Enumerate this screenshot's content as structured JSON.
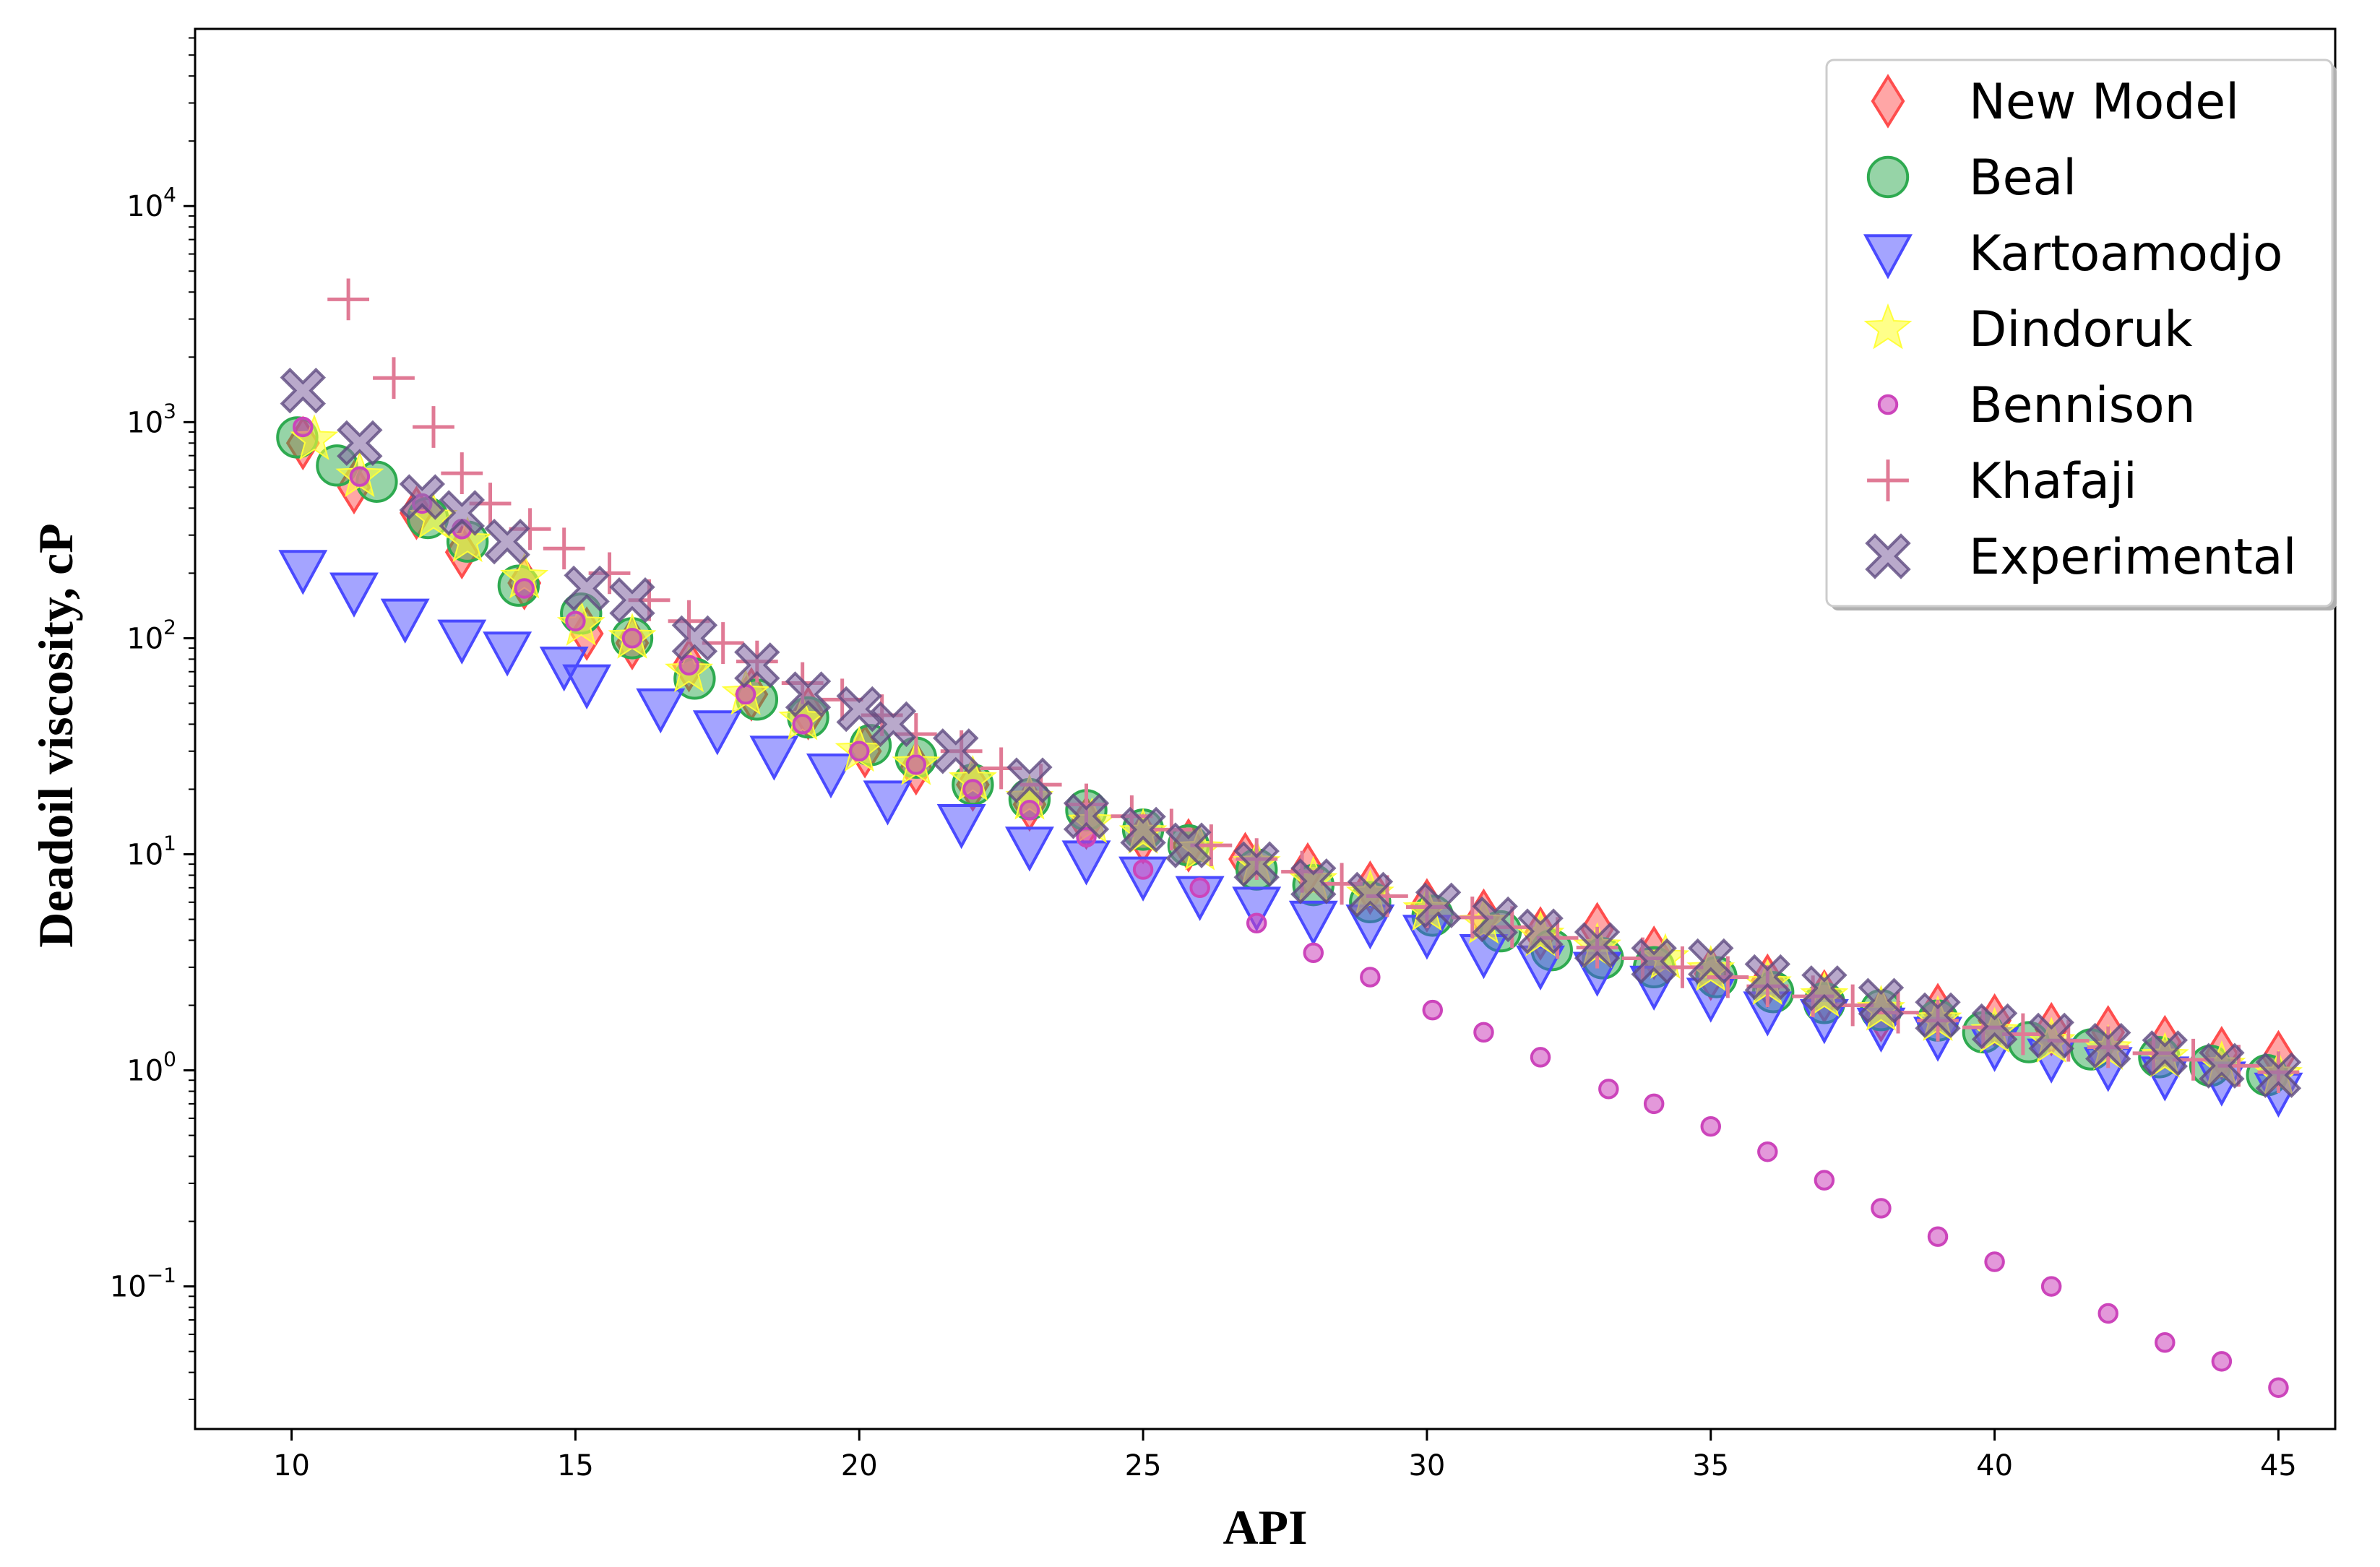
{
  "chart_data": {
    "type": "scatter",
    "title": "",
    "xlabel": "API",
    "ylabel": "Deadoil viscosity,  cP",
    "yscale": "log",
    "xlim": [
      8.3,
      46.0
    ],
    "ylim_log10": [
      -1.66,
      4.82
    ],
    "grid": false,
    "legend_position": "top-right",
    "x_ticks": [
      10,
      15,
      20,
      25,
      30,
      35,
      40,
      45
    ],
    "y_ticks": [
      {
        "base": "10",
        "exp": "4",
        "log": 4
      },
      {
        "base": "10",
        "exp": "3",
        "log": 3
      },
      {
        "base": "10",
        "exp": "2",
        "log": 2
      },
      {
        "base": "10",
        "exp": "1",
        "log": 1
      },
      {
        "base": "10",
        "exp": "0",
        "log": 0
      },
      {
        "base": "10",
        "exp": "−1",
        "log": -1
      }
    ],
    "series": [
      {
        "name": "New Model",
        "marker": "diamond",
        "color": "#ff4d4d",
        "x": [
          10.2,
          11.1,
          12.2,
          13.0,
          14.1,
          15.2,
          16.0,
          17.0,
          18.1,
          19.1,
          20.1,
          21.0,
          22.0,
          23.0,
          24.0,
          25.0,
          25.8,
          26.8,
          27.9,
          29.0,
          30.0,
          31.0,
          32.0,
          33.0,
          34.0,
          35.0,
          36.0,
          37.0,
          38.0,
          39.0,
          40.0,
          41.0,
          42.0,
          43.0,
          44.0,
          45.0
        ],
        "y": [
          800,
          500,
          380,
          250,
          180,
          105,
          95,
          75,
          55,
          45,
          30,
          25,
          21,
          17,
          14,
          12,
          11,
          9.5,
          8.5,
          7,
          5.8,
          5.2,
          4.3,
          4.5,
          3.5,
          2.8,
          2.6,
          2.2,
          1.8,
          1.9,
          1.7,
          1.55,
          1.5,
          1.35,
          1.2,
          1.15
        ]
      },
      {
        "name": "Beal",
        "marker": "circle",
        "color": "#2eaa50",
        "x": [
          10.1,
          10.8,
          11.5,
          12.4,
          13.1,
          14.0,
          15.1,
          16.0,
          17.1,
          18.2,
          19.1,
          20.2,
          21.0,
          22.0,
          23.0,
          24.0,
          25.0,
          25.8,
          27.0,
          28.0,
          29.0,
          30.1,
          31.3,
          32.2,
          33.1,
          34.0,
          35.1,
          36.1,
          37.0,
          38.0,
          39.0,
          39.8,
          40.6,
          41.7,
          42.9,
          43.8,
          44.8
        ],
        "y": [
          850,
          630,
          530,
          360,
          280,
          175,
          130,
          100,
          65,
          52,
          43,
          32,
          28,
          21,
          18,
          16,
          13,
          11,
          8.5,
          7.2,
          6,
          5.2,
          4.4,
          3.6,
          3.3,
          3,
          2.7,
          2.3,
          2.05,
          1.9,
          1.7,
          1.5,
          1.35,
          1.25,
          1.15,
          1.05,
          0.95
        ]
      },
      {
        "name": "Kartoamodjo",
        "marker": "triangle-down",
        "color": "#4a4aff",
        "x": [
          10.2,
          11.1,
          12.0,
          13.0,
          13.8,
          14.8,
          15.2,
          16.5,
          17.5,
          18.5,
          19.5,
          20.5,
          21.8,
          23.0,
          24.0,
          25.0,
          26.0,
          27.0,
          28.0,
          29.0,
          30.0,
          31.0,
          32.0,
          33.0,
          34.0,
          35.0,
          36.0,
          37.0,
          38.0,
          39.0,
          40.0,
          41.0,
          42.0,
          43.0,
          44.0,
          45.0
        ],
        "y": [
          210,
          165,
          125,
          100,
          88,
          75,
          62,
          48,
          38,
          29,
          24,
          18,
          14,
          11,
          9.5,
          8,
          6.5,
          5.8,
          5,
          4.8,
          4.3,
          3.5,
          3.1,
          2.9,
          2.5,
          2.2,
          1.9,
          1.75,
          1.6,
          1.45,
          1.3,
          1.15,
          1.05,
          0.95,
          0.9,
          0.8
        ]
      },
      {
        "name": "Dindoruk",
        "marker": "star",
        "color": "#ffff3a",
        "x": [
          10.4,
          11.2,
          12.5,
          13.1,
          14.1,
          15.1,
          16.0,
          17.0,
          18.0,
          19.0,
          20.0,
          21.0,
          22.0,
          23.0,
          24.1,
          25.0,
          26.0,
          27.0,
          28.0,
          29.0,
          30.0,
          31.0,
          32.0,
          33.0,
          34.2,
          35.0,
          36.0,
          37.0,
          38.0,
          39.0,
          40.0,
          41.0,
          42.0,
          43.0,
          44.0,
          45.0
        ],
        "y": [
          830,
          560,
          360,
          280,
          190,
          115,
          100,
          70,
          55,
          42,
          30,
          26,
          22,
          18,
          14,
          12.5,
          10.5,
          9,
          7.5,
          6.5,
          5.5,
          4.8,
          4.2,
          3.7,
          3.3,
          2.9,
          2.5,
          2.2,
          1.9,
          1.7,
          1.5,
          1.35,
          1.25,
          1.15,
          1.05,
          0.95
        ]
      },
      {
        "name": "Bennison",
        "marker": "circle-small",
        "color": "#cc44bb",
        "x": [
          10.2,
          11.2,
          12.3,
          13.0,
          14.1,
          15.0,
          16.0,
          17.0,
          18.0,
          19.0,
          20.0,
          21.0,
          22.0,
          23.0,
          24.0,
          25.0,
          26.0,
          27.0,
          28.0,
          29.0,
          30.1,
          31.0,
          32.0,
          33.2,
          34.0,
          35.0,
          36.0,
          37.0,
          38.0,
          39.0,
          40.0,
          41.0,
          42.0,
          43.0,
          44.0,
          45.0
        ],
        "y": [
          950,
          560,
          420,
          320,
          170,
          120,
          100,
          75,
          55,
          40,
          30,
          26,
          20,
          16,
          12,
          8.5,
          7,
          4.8,
          3.5,
          2.7,
          1.9,
          1.5,
          1.15,
          0.82,
          0.7,
          0.55,
          0.42,
          0.31,
          0.23,
          0.17,
          0.13,
          0.1,
          0.075,
          0.055,
          0.045,
          0.034
        ]
      },
      {
        "name": "Khafaji",
        "marker": "plus",
        "color": "#e07a95",
        "x": [
          11.0,
          11.8,
          12.5,
          13.0,
          13.5,
          14.2,
          14.8,
          15.6,
          16.3,
          17.0,
          17.6,
          18.2,
          19.0,
          19.7,
          20.4,
          21.0,
          21.8,
          22.5,
          23.2,
          24.0,
          24.8,
          25.5,
          26.2,
          27.0,
          27.8,
          28.5,
          29.3,
          30.0,
          30.8,
          31.5,
          32.3,
          33.0,
          33.8,
          34.5,
          35.3,
          36.0,
          36.8,
          37.5,
          38.3,
          39.0,
          39.8,
          40.5,
          41.3,
          42.0,
          42.8,
          43.5,
          44.3,
          45.0
        ],
        "y": [
          3700,
          1600,
          950,
          580,
          420,
          320,
          260,
          200,
          150,
          120,
          95,
          78,
          62,
          52,
          44,
          36,
          30,
          25,
          21,
          17,
          15,
          13,
          11,
          9.5,
          8.3,
          7.3,
          6.4,
          5.7,
          5.1,
          4.6,
          4.1,
          3.7,
          3.3,
          3.0,
          2.7,
          2.45,
          2.2,
          2.0,
          1.85,
          1.7,
          1.58,
          1.47,
          1.37,
          1.28,
          1.2,
          1.12,
          1.05,
          0.98
        ]
      },
      {
        "name": "Experimental",
        "marker": "x-filled",
        "color": "#8a6fa8",
        "x": [
          10.2,
          11.2,
          12.3,
          13.0,
          13.8,
          15.2,
          16.0,
          17.1,
          18.2,
          19.1,
          20.0,
          20.6,
          21.7,
          23.0,
          24.0,
          25.0,
          25.8,
          27.0,
          28.0,
          29.0,
          30.2,
          31.2,
          32.0,
          33.0,
          34.0,
          35.0,
          36.0,
          37.0,
          38.0,
          39.0,
          40.0,
          41.0,
          42.0,
          43.0,
          44.0,
          45.0
        ],
        "y": [
          1400,
          800,
          450,
          380,
          280,
          170,
          150,
          100,
          75,
          55,
          47,
          40,
          30,
          22,
          15,
          13,
          11,
          9,
          7.5,
          6.5,
          5.8,
          5,
          4.4,
          3.8,
          3.2,
          3.2,
          2.7,
          2.4,
          2.1,
          1.8,
          1.6,
          1.45,
          1.3,
          1.2,
          1.05,
          0.95
        ]
      }
    ]
  }
}
